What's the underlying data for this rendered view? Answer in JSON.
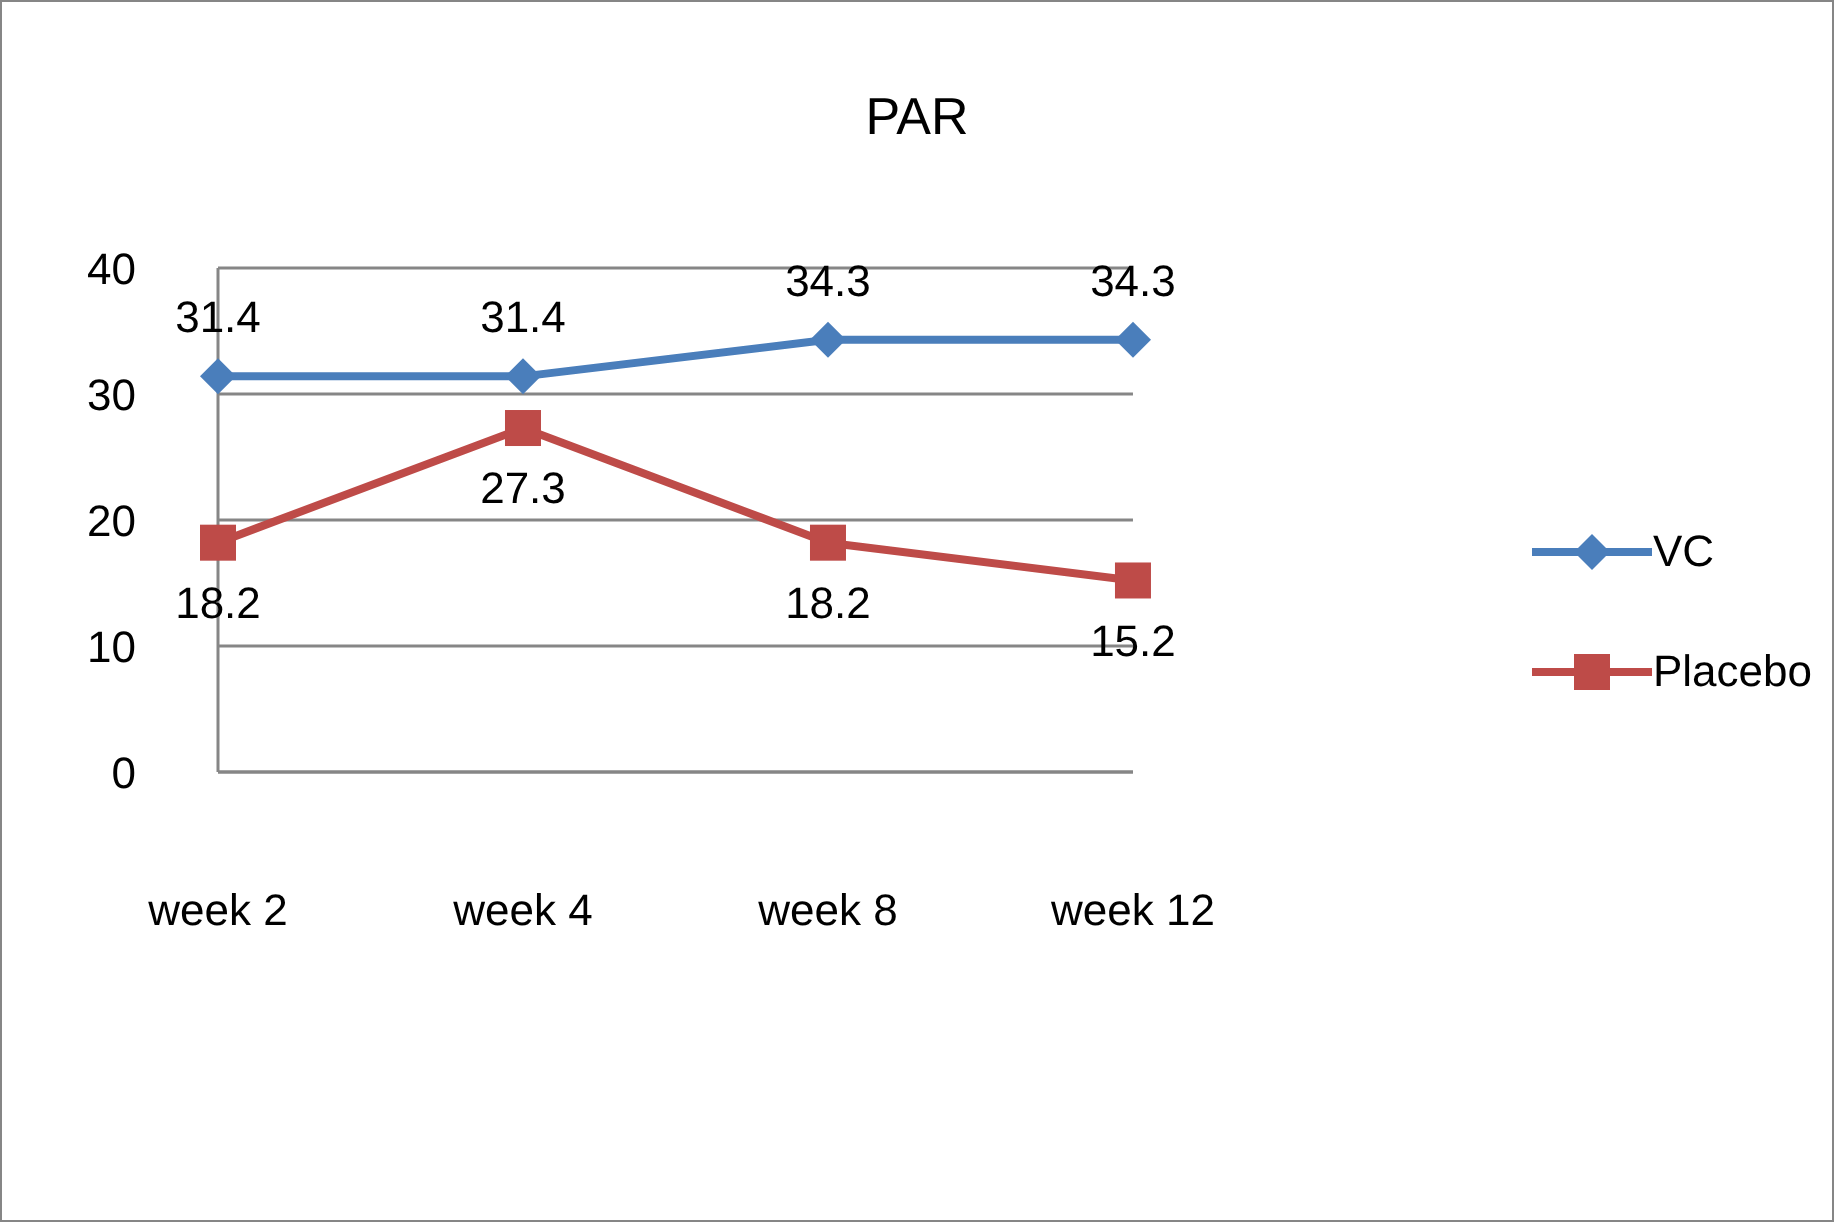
{
  "chart_data": {
    "type": "line",
    "title": "PAR",
    "categories": [
      "week 2",
      "week 4",
      "week 8",
      "week 12"
    ],
    "series": [
      {
        "name": "VC",
        "color": "#4a7ebb",
        "marker": "diamond",
        "values": [
          31.4,
          31.4,
          34.3,
          34.3
        ]
      },
      {
        "name": "Placebo",
        "color": "#be4b48",
        "marker": "square",
        "values": [
          18.2,
          27.3,
          18.2,
          15.2
        ]
      }
    ],
    "ylim": [
      0,
      40
    ],
    "yticks": [
      0,
      10,
      20,
      30,
      40
    ],
    "grid": "y",
    "legend": "right",
    "data_labels": true
  }
}
